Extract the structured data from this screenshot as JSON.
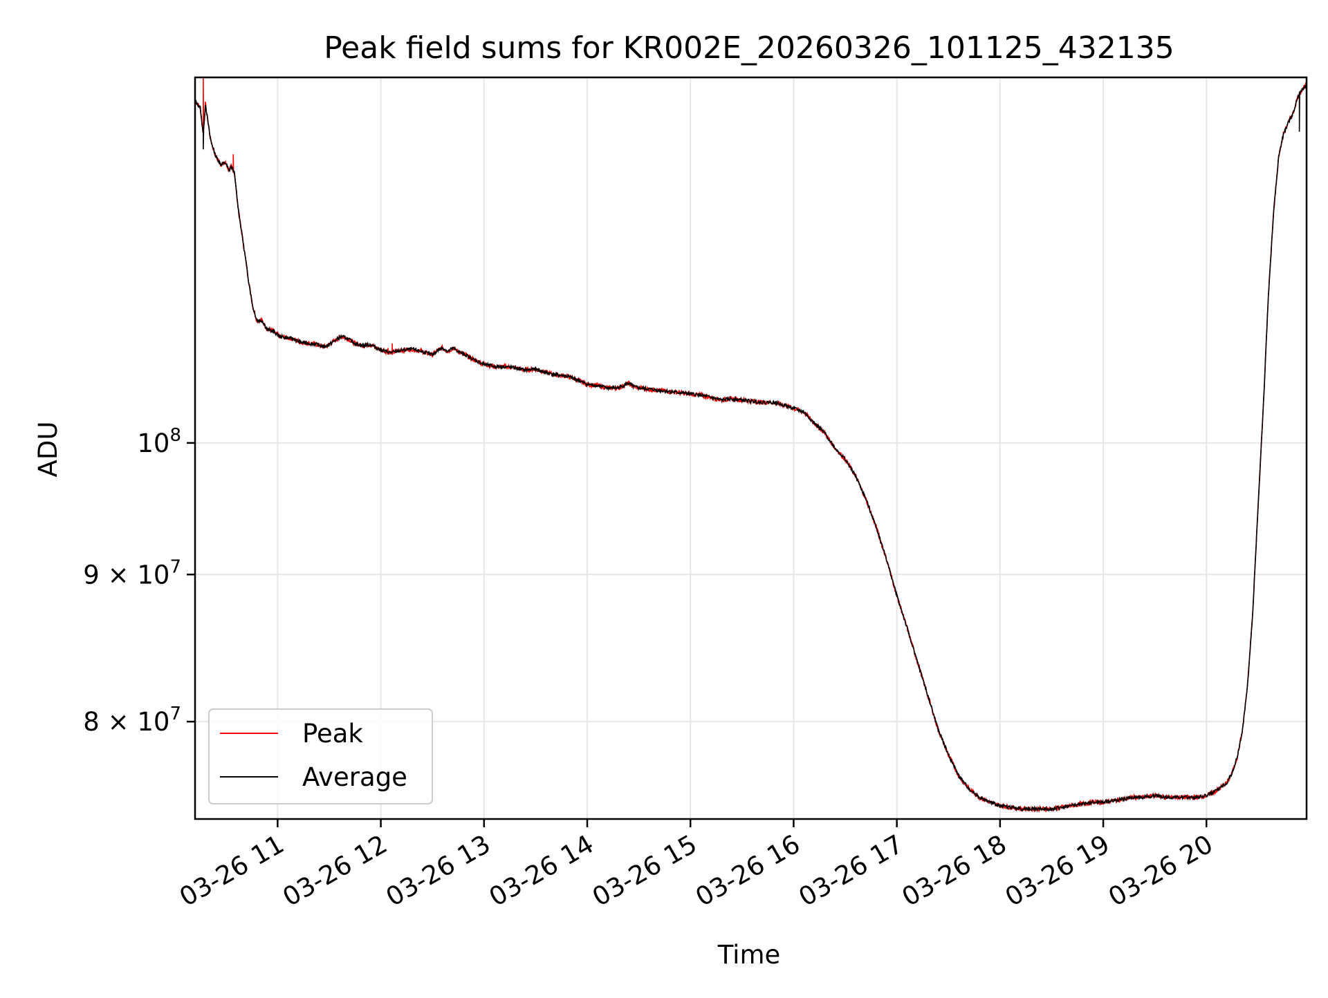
{
  "chart_data": {
    "type": "line",
    "title": "Peak field sums for KR002E_20260326_101125_432135",
    "xlabel": "Time",
    "ylabel": "ADU",
    "yscale": "log",
    "xlim_hours": [
      10.2,
      20.97
    ],
    "ylim": [
      74000000,
      134000000
    ],
    "grid": true,
    "legend_position": "lower-left",
    "x_ticks": [
      {
        "label": "03-26 11",
        "hour": 11
      },
      {
        "label": "03-26 12",
        "hour": 12
      },
      {
        "label": "03-26 13",
        "hour": 13
      },
      {
        "label": "03-26 14",
        "hour": 14
      },
      {
        "label": "03-26 15",
        "hour": 15
      },
      {
        "label": "03-26 16",
        "hour": 16
      },
      {
        "label": "03-26 17",
        "hour": 17
      },
      {
        "label": "03-26 18",
        "hour": 18
      },
      {
        "label": "03-26 19",
        "hour": 19
      },
      {
        "label": "03-26 20",
        "hour": 20
      }
    ],
    "y_ticks": [
      {
        "value": 100000000,
        "mant": "",
        "sup": "8",
        "base": "10"
      },
      {
        "value": 90000000,
        "mant": "9 × ",
        "sup": "7",
        "base": "10"
      },
      {
        "value": 80000000,
        "mant": "8 × ",
        "sup": "7",
        "base": "10"
      }
    ],
    "x_hours": [
      10.2,
      10.25,
      10.28,
      10.3,
      10.35,
      10.4,
      10.45,
      10.5,
      10.53,
      10.55,
      10.58,
      10.62,
      10.68,
      10.72,
      10.76,
      10.8,
      10.85,
      10.9,
      10.95,
      11.02,
      11.08,
      11.15,
      11.22,
      11.3,
      11.38,
      11.45,
      11.5,
      11.55,
      11.62,
      11.68,
      11.75,
      11.82,
      11.9,
      11.98,
      12.05,
      12.1,
      12.15,
      12.2,
      12.3,
      12.4,
      12.5,
      12.55,
      12.6,
      12.65,
      12.7,
      12.75,
      12.82,
      12.9,
      13.0,
      13.1,
      13.2,
      13.3,
      13.4,
      13.5,
      13.6,
      13.7,
      13.8,
      13.9,
      14.0,
      14.1,
      14.2,
      14.3,
      14.35,
      14.4,
      14.45,
      14.5,
      14.6,
      14.7,
      14.8,
      14.9,
      15.0,
      15.1,
      15.2,
      15.3,
      15.4,
      15.5,
      15.6,
      15.7,
      15.8,
      15.9,
      16.0,
      16.1,
      16.2,
      16.3,
      16.4,
      16.5,
      16.6,
      16.7,
      16.8,
      16.9,
      17.0,
      17.1,
      17.2,
      17.3,
      17.4,
      17.5,
      17.6,
      17.7,
      17.8,
      17.9,
      18.0,
      18.1,
      18.2,
      18.3,
      18.4,
      18.5,
      18.6,
      18.7,
      18.8,
      18.9,
      19.0,
      19.1,
      19.2,
      19.3,
      19.4,
      19.5,
      19.6,
      19.7,
      19.8,
      19.9,
      20.0,
      20.1,
      20.2,
      20.25,
      20.3,
      20.35,
      20.4,
      20.45,
      20.5,
      20.55,
      20.6,
      20.65,
      20.7,
      20.75,
      20.8,
      20.84,
      20.86,
      20.88,
      20.9,
      20.93,
      20.97
    ],
    "series": [
      {
        "name": "Peak",
        "color": "#ff0000",
        "values": [
          131500000,
          130800000,
          128000000,
          131200000,
          127500000,
          125800000,
          125000000,
          125100000,
          124300000,
          124800000,
          124200000,
          120500000,
          116500000,
          113800000,
          111500000,
          110300000,
          110300000,
          109500000,
          109400000,
          108900000,
          108800000,
          108700000,
          108400000,
          108300000,
          108200000,
          108000000,
          108200000,
          108500000,
          108900000,
          108700000,
          108300000,
          108100000,
          108200000,
          107800000,
          107600000,
          107500000,
          107600000,
          107700000,
          107800000,
          107600000,
          107300000,
          107700000,
          107900000,
          107600000,
          107900000,
          107600000,
          107300000,
          106900000,
          106500000,
          106300000,
          106300000,
          106200000,
          106000000,
          106100000,
          105800000,
          105600000,
          105500000,
          105200000,
          104800000,
          104700000,
          104500000,
          104500000,
          104700000,
          104900000,
          104600000,
          104500000,
          104400000,
          104300000,
          104200000,
          104100000,
          104000000,
          103900000,
          103700000,
          103500000,
          103600000,
          103500000,
          103400000,
          103300000,
          103300000,
          103100000,
          102800000,
          102500000,
          101600000,
          100800000,
          99600000,
          98700000,
          97400000,
          95600000,
          93500000,
          91100000,
          88500000,
          86200000,
          83900000,
          81700000,
          79500000,
          77900000,
          76600000,
          75800000,
          75300000,
          75000000,
          74800000,
          74700000,
          74600000,
          74600000,
          74600000,
          74600000,
          74700000,
          74800000,
          74900000,
          75000000,
          75000000,
          75100000,
          75200000,
          75300000,
          75300000,
          75400000,
          75300000,
          75300000,
          75300000,
          75300000,
          75400000,
          75700000,
          76200000,
          76800000,
          77800000,
          79500000,
          82500000,
          87500000,
          95000000,
          102800000,
          112500000,
          120200000,
          125800000,
          128200000,
          129400000,
          130200000,
          131000000,
          131800000,
          132200000,
          132800000,
          133200000
        ]
      },
      {
        "name": "Average",
        "color": "#000000",
        "values": [
          131500000,
          130800000,
          128000000,
          131200000,
          127500000,
          125800000,
          125000000,
          125100000,
          124300000,
          124800000,
          124200000,
          120500000,
          116500000,
          113800000,
          111500000,
          110300000,
          110300000,
          109500000,
          109400000,
          108900000,
          108800000,
          108700000,
          108400000,
          108300000,
          108200000,
          108000000,
          108200000,
          108500000,
          108900000,
          108700000,
          108300000,
          108100000,
          108200000,
          107800000,
          107600000,
          107500000,
          107600000,
          107700000,
          107800000,
          107600000,
          107300000,
          107700000,
          107900000,
          107600000,
          107900000,
          107600000,
          107300000,
          106900000,
          106500000,
          106300000,
          106300000,
          106200000,
          106000000,
          106100000,
          105800000,
          105600000,
          105500000,
          105200000,
          104800000,
          104700000,
          104500000,
          104500000,
          104700000,
          104900000,
          104600000,
          104500000,
          104400000,
          104300000,
          104200000,
          104100000,
          104000000,
          103900000,
          103700000,
          103500000,
          103600000,
          103500000,
          103400000,
          103300000,
          103300000,
          103100000,
          102800000,
          102500000,
          101600000,
          100800000,
          99600000,
          98700000,
          97400000,
          95600000,
          93500000,
          91100000,
          88500000,
          86200000,
          83900000,
          81700000,
          79500000,
          77900000,
          76600000,
          75800000,
          75300000,
          75000000,
          74800000,
          74700000,
          74600000,
          74600000,
          74600000,
          74600000,
          74700000,
          74800000,
          74900000,
          75000000,
          75000000,
          75100000,
          75200000,
          75300000,
          75300000,
          75400000,
          75300000,
          75300000,
          75300000,
          75300000,
          75400000,
          75700000,
          76200000,
          76800000,
          77800000,
          79500000,
          82500000,
          87500000,
          95000000,
          102800000,
          112500000,
          120200000,
          125800000,
          128200000,
          129400000,
          130200000,
          131000000,
          131800000,
          132200000,
          132800000,
          133200000
        ]
      }
    ],
    "peak_spikes": [
      {
        "hour": 10.28,
        "value": 134000000
      },
      {
        "hour": 10.57,
        "value": 126000000
      },
      {
        "hour": 10.75,
        "value": 111800000
      },
      {
        "hour": 12.07,
        "value": 107900000
      },
      {
        "hour": 12.11,
        "value": 108300000
      }
    ],
    "average_dips": [
      {
        "hour": 10.28,
        "value": 126500000
      },
      {
        "hour": 20.9,
        "value": 128300000
      }
    ],
    "legend": [
      {
        "label": "Peak",
        "color": "#ff0000"
      },
      {
        "label": "Average",
        "color": "#000000"
      }
    ]
  }
}
